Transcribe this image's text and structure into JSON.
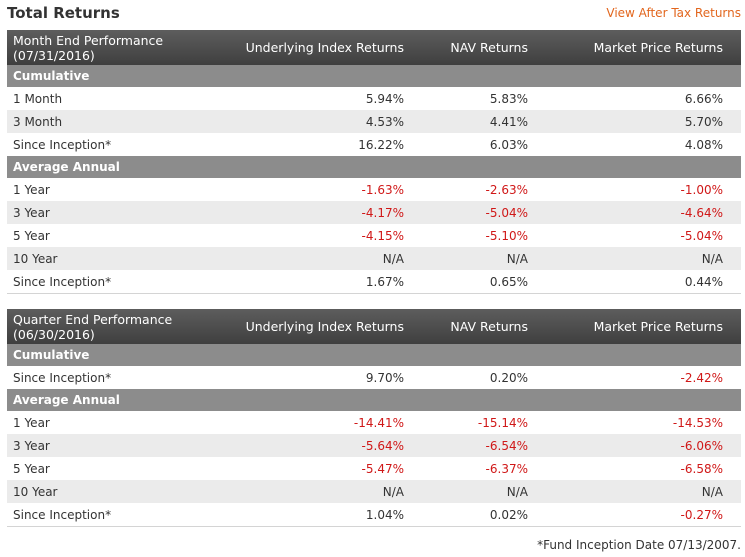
{
  "header": {
    "title": "Total Returns",
    "tax_link": "View After Tax Returns"
  },
  "columns": {
    "index": "Underlying Index Returns",
    "nav": "NAV Returns",
    "market": "Market Price Returns"
  },
  "month_end": {
    "heading_line1": "Month End Performance",
    "heading_line2": "(07/31/2016)",
    "cumulative_label": "Cumulative",
    "cumulative": [
      {
        "period": "1 Month",
        "index": "5.94%",
        "nav": "5.83%",
        "market": "6.66%"
      },
      {
        "period": "3 Month",
        "index": "4.53%",
        "nav": "4.41%",
        "market": "5.70%"
      },
      {
        "period": "Since Inception*",
        "index": "16.22%",
        "nav": "6.03%",
        "market": "4.08%"
      }
    ],
    "annual_label": "Average Annual",
    "annual": [
      {
        "period": "1 Year",
        "index": "-1.63%",
        "nav": "-2.63%",
        "market": "-1.00%"
      },
      {
        "period": "3 Year",
        "index": "-4.17%",
        "nav": "-5.04%",
        "market": "-4.64%"
      },
      {
        "period": "5 Year",
        "index": "-4.15%",
        "nav": "-5.10%",
        "market": "-5.04%"
      },
      {
        "period": "10 Year",
        "index": "N/A",
        "nav": "N/A",
        "market": "N/A"
      },
      {
        "period": "Since Inception*",
        "index": "1.67%",
        "nav": "0.65%",
        "market": "0.44%"
      }
    ]
  },
  "quarter_end": {
    "heading_line1": "Quarter End Performance",
    "heading_line2": "(06/30/2016)",
    "cumulative_label": "Cumulative",
    "cumulative": [
      {
        "period": "Since Inception*",
        "index": "9.70%",
        "nav": "0.20%",
        "market": "-2.42%"
      }
    ],
    "annual_label": "Average Annual",
    "annual": [
      {
        "period": "1 Year",
        "index": "-14.41%",
        "nav": "-15.14%",
        "market": "-14.53%"
      },
      {
        "period": "3 Year",
        "index": "-5.64%",
        "nav": "-6.54%",
        "market": "-6.06%"
      },
      {
        "period": "5 Year",
        "index": "-5.47%",
        "nav": "-6.37%",
        "market": "-6.58%"
      },
      {
        "period": "10 Year",
        "index": "N/A",
        "nav": "N/A",
        "market": "N/A"
      },
      {
        "period": "Since Inception*",
        "index": "1.04%",
        "nav": "0.02%",
        "market": "-0.27%"
      }
    ]
  },
  "footnote": "*Fund Inception Date 07/13/2007.",
  "colors": {
    "header_bg": "#4a4a4a",
    "section_bg": "#8c8c8c",
    "negative": "#d01818",
    "link": "#e2661e",
    "alt_row": "#ebebeb"
  }
}
